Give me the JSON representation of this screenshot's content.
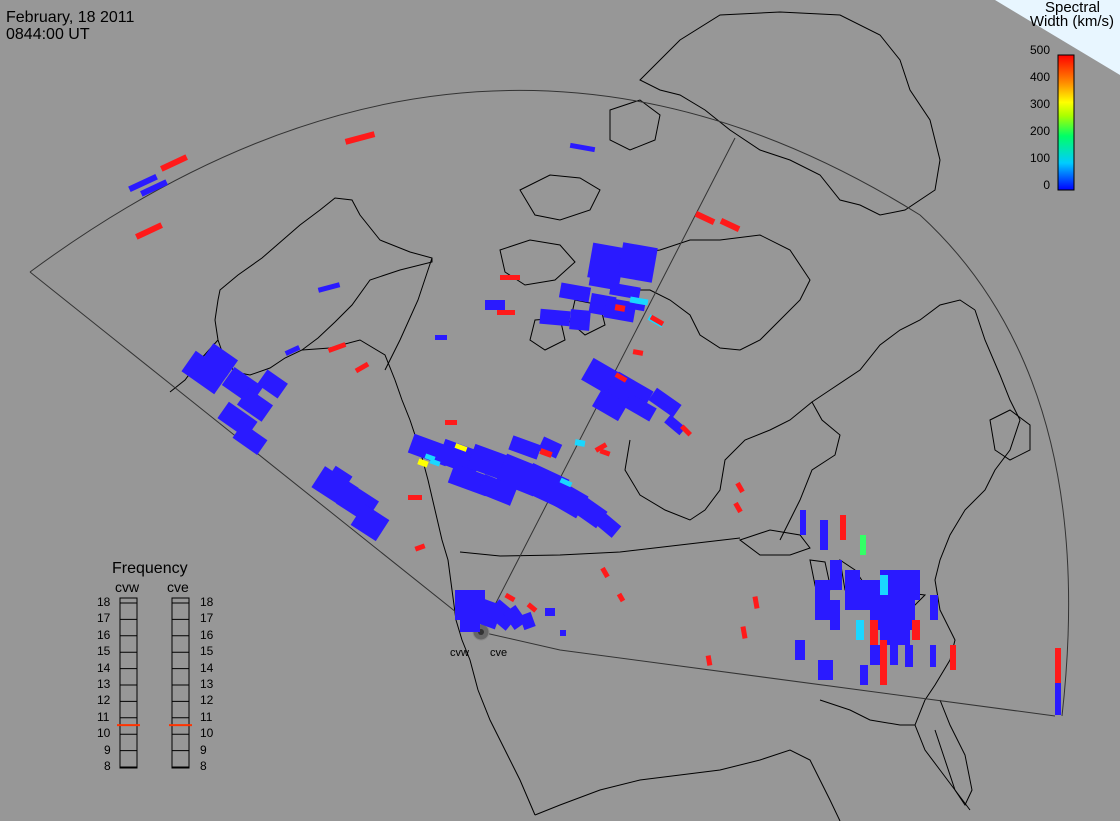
{
  "header": {
    "date": "February, 18 2011",
    "time": "0844:00 UT"
  },
  "colorbar": {
    "title_line1": "Spectral",
    "title_line2": "Width (km/s)",
    "ticks": [
      "500",
      "400",
      "300",
      "200",
      "100",
      "0"
    ],
    "colors": [
      "#ff0000",
      "#ff8800",
      "#ffff00",
      "#00ff00",
      "#00ffff",
      "#0000ff"
    ]
  },
  "frequency_panel": {
    "title": "Frequency",
    "radar_west": "cvw",
    "radar_east": "cve",
    "ticks": [
      "18",
      "17",
      "16",
      "15",
      "14",
      "13",
      "12",
      "11",
      "10",
      "9",
      "8"
    ],
    "cvw_value": 11,
    "cve_value": 11
  },
  "radars": {
    "west_label": "cvw",
    "east_label": "cve"
  },
  "colors": {
    "background": "#979797",
    "low_width": "#2a1aff",
    "high_width": "#ff1a1a",
    "mid_width": "#1ad7ff"
  }
}
